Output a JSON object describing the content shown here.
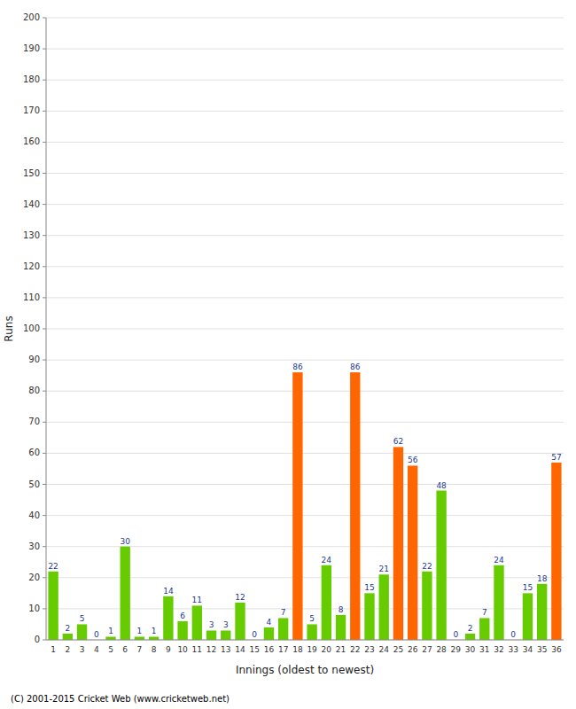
{
  "chart_data": {
    "type": "bar",
    "categories": [
      "1",
      "2",
      "3",
      "4",
      "5",
      "6",
      "7",
      "8",
      "9",
      "10",
      "11",
      "12",
      "13",
      "14",
      "15",
      "16",
      "17",
      "18",
      "19",
      "20",
      "21",
      "22",
      "23",
      "24",
      "25",
      "26",
      "27",
      "28",
      "29",
      "30",
      "31",
      "32",
      "33",
      "34",
      "35",
      "36"
    ],
    "values": [
      22,
      2,
      5,
      0,
      1,
      30,
      1,
      1,
      14,
      6,
      11,
      3,
      3,
      12,
      0,
      4,
      7,
      86,
      5,
      24,
      8,
      86,
      15,
      21,
      62,
      56,
      22,
      48,
      0,
      2,
      7,
      24,
      0,
      15,
      18,
      57
    ],
    "colors": [
      "#66cc00",
      "#66cc00",
      "#66cc00",
      "#66cc00",
      "#66cc00",
      "#66cc00",
      "#66cc00",
      "#66cc00",
      "#66cc00",
      "#66cc00",
      "#66cc00",
      "#66cc00",
      "#66cc00",
      "#66cc00",
      "#66cc00",
      "#66cc00",
      "#66cc00",
      "#ff6600",
      "#66cc00",
      "#66cc00",
      "#66cc00",
      "#ff6600",
      "#66cc00",
      "#66cc00",
      "#ff6600",
      "#ff6600",
      "#66cc00",
      "#66cc00",
      "#66cc00",
      "#66cc00",
      "#66cc00",
      "#66cc00",
      "#66cc00",
      "#66cc00",
      "#66cc00",
      "#ff6600"
    ],
    "xlabel": "Innings (oldest to newest)",
    "ylabel": "Runs",
    "ylim": [
      0,
      200
    ],
    "yticks": [
      0,
      10,
      20,
      30,
      40,
      50,
      60,
      70,
      80,
      90,
      100,
      110,
      120,
      130,
      140,
      150,
      160,
      170,
      180,
      190,
      200
    ],
    "grid": true,
    "data_labels": true,
    "annotations": [
      "(C) 2001-2015 Cricket Web (www.cricketweb.net)"
    ]
  }
}
